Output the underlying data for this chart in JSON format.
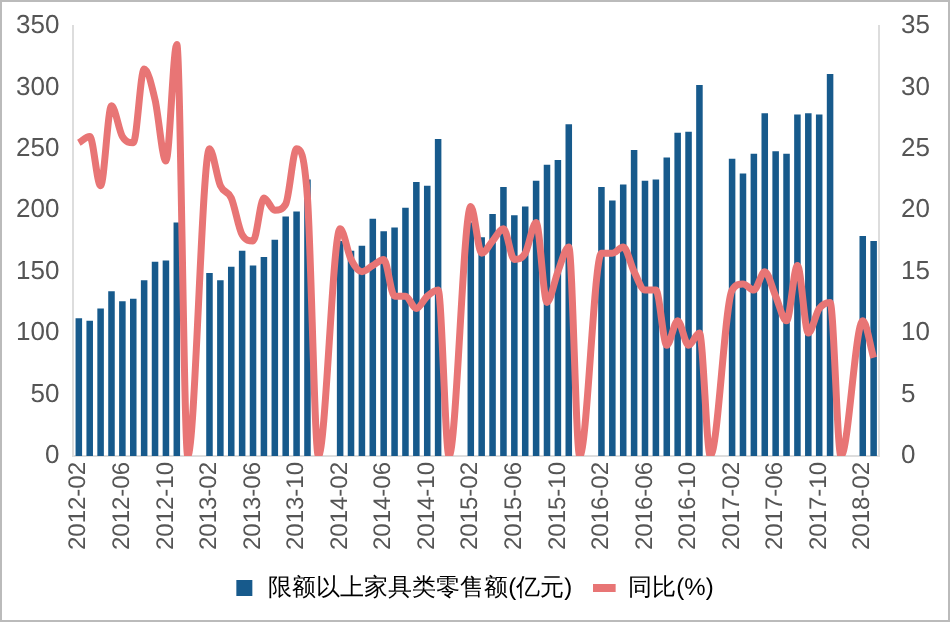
{
  "chart_data": {
    "type": "bar",
    "categories": [
      "2012-02",
      null,
      null,
      null,
      "2012-06",
      null,
      null,
      null,
      "2012-10",
      null,
      null,
      null,
      "2013-02",
      null,
      null,
      null,
      "2013-06",
      null,
      null,
      null,
      "2013-10",
      null,
      null,
      null,
      "2014-02",
      null,
      null,
      null,
      "2014-06",
      null,
      null,
      null,
      "2014-10",
      null,
      null,
      null,
      "2015-02",
      null,
      null,
      null,
      "2015-06",
      null,
      null,
      null,
      "2015-10",
      null,
      null,
      null,
      "2016-02",
      null,
      null,
      null,
      "2016-06",
      null,
      null,
      null,
      "2016-10",
      null,
      null,
      null,
      "2017-02",
      null,
      null,
      null,
      "2017-06",
      null,
      null,
      null,
      "2017-10",
      null,
      null,
      null,
      "2018-02",
      null
    ],
    "series": [
      {
        "name": "限额以上家具类零售额(亿元)",
        "color": "#175a8c",
        "values": [
          112,
          110,
          120,
          134,
          126,
          128,
          143,
          158,
          159,
          190,
          null,
          null,
          149,
          143,
          154,
          167,
          155,
          162,
          176,
          195,
          199,
          225,
          null,
          null,
          175,
          167,
          171,
          193,
          183,
          186,
          202,
          223,
          220,
          258,
          null,
          null,
          190,
          178,
          197,
          219,
          196,
          203,
          224,
          237,
          241,
          270,
          null,
          null,
          219,
          208,
          221,
          249,
          224,
          225,
          243,
          263,
          264,
          302,
          null,
          null,
          242,
          230,
          246,
          279,
          248,
          246,
          278,
          279,
          278,
          311,
          null,
          null,
          179,
          175
        ]
      },
      {
        "name": "同比(%)",
        "type": "line",
        "axis": "y2",
        "color": "#e87575",
        "values": [
          25.5,
          26,
          22,
          28.5,
          26,
          25.5,
          31.5,
          29,
          24,
          33.5,
          0,
          null,
          25,
          22,
          21,
          18,
          17.5,
          21,
          20,
          20.5,
          25,
          21,
          0,
          null,
          18.5,
          16,
          15,
          15.5,
          16,
          13,
          13,
          12,
          13,
          13.5,
          0,
          null,
          20.3,
          16.5,
          17.5,
          18.5,
          16,
          16.5,
          19,
          12.5,
          15,
          17,
          0,
          null,
          16.5,
          16.5,
          17,
          15,
          13.5,
          13.5,
          9,
          11,
          9,
          10,
          0,
          null,
          13.5,
          14,
          13.5,
          15,
          13,
          11,
          15.5,
          10,
          12,
          12.5,
          0,
          null,
          11,
          8
        ]
      }
    ],
    "ylim": [
      0,
      350
    ],
    "yticks": [
      0,
      50,
      100,
      150,
      200,
      250,
      300,
      350
    ],
    "y2lim": [
      0,
      35
    ],
    "y2ticks": [
      0,
      5,
      10,
      15,
      20,
      25,
      30,
      35
    ],
    "grid": false,
    "legend": "bottom",
    "marker": "none"
  }
}
